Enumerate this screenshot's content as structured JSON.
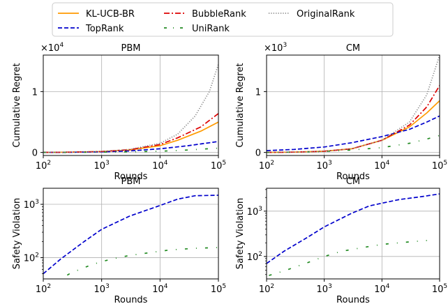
{
  "legend": {
    "placement": "top-center",
    "entries": [
      {
        "label": "KL-UCB-BR",
        "color": "#ff9a00",
        "style": "solid"
      },
      {
        "label": "TopRank",
        "color": "#0000cc",
        "style": "dashed"
      },
      {
        "label": "BubbleRank",
        "color": "#dd0000",
        "style": "dashdot"
      },
      {
        "label": "UniRank",
        "color": "#228b22",
        "style": "sparse-dashdot"
      },
      {
        "label": "OriginalRank",
        "color": "#888888",
        "style": "dotted"
      }
    ]
  },
  "chart_data": [
    {
      "type": "line",
      "title": "PBM",
      "ylabel": "Cumulative Regret",
      "xlabel": "Rounds",
      "xscale": "log",
      "yscale": "linear",
      "xlim": [
        100,
        100000
      ],
      "ylim": [
        -0.05,
        1.6
      ],
      "multiplier": "×10",
      "multiplier_exp": "4",
      "grid": true,
      "xticks": [
        {
          "base": "10",
          "exp": "2"
        },
        {
          "base": "10",
          "exp": "3"
        },
        {
          "base": "10",
          "exp": "4"
        },
        {
          "base": "10",
          "exp": "5"
        }
      ],
      "yticks": [
        "0",
        "1"
      ],
      "series": [
        {
          "name": "KL-UCB-BR",
          "x": [
            100,
            300,
            1000,
            3000,
            10000,
            20000,
            50000,
            100000
          ],
          "y": [
            0.0,
            0.005,
            0.015,
            0.04,
            0.11,
            0.2,
            0.35,
            0.5
          ]
        },
        {
          "name": "TopRank",
          "x": [
            100,
            300,
            1000,
            3000,
            10000,
            30000,
            100000
          ],
          "y": [
            0.0,
            0.003,
            0.01,
            0.025,
            0.06,
            0.11,
            0.18
          ]
        },
        {
          "name": "BubbleRank",
          "x": [
            100,
            300,
            1000,
            3000,
            10000,
            20000,
            50000,
            100000
          ],
          "y": [
            0.0,
            0.005,
            0.015,
            0.045,
            0.13,
            0.24,
            0.42,
            0.64
          ]
        },
        {
          "name": "UniRank",
          "x": [
            100,
            300,
            1000,
            3000,
            10000,
            30000,
            100000
          ],
          "y": [
            0.0,
            0.002,
            0.005,
            0.01,
            0.02,
            0.04,
            0.07
          ]
        },
        {
          "name": "OriginalRank",
          "x": [
            100,
            300,
            1000,
            3000,
            10000,
            20000,
            40000,
            70000,
            100000
          ],
          "y": [
            0.0,
            0.005,
            0.015,
            0.05,
            0.15,
            0.3,
            0.6,
            1.0,
            1.45
          ]
        }
      ]
    },
    {
      "type": "line",
      "title": "CM",
      "ylabel": "Cumulative Regret",
      "xlabel": "Rounds",
      "xscale": "log",
      "yscale": "linear",
      "xlim": [
        100,
        100000
      ],
      "ylim": [
        -0.05,
        1.6
      ],
      "multiplier": "×10",
      "multiplier_exp": "3",
      "grid": true,
      "xticks": [
        {
          "base": "10",
          "exp": "2"
        },
        {
          "base": "10",
          "exp": "3"
        },
        {
          "base": "10",
          "exp": "4"
        },
        {
          "base": "10",
          "exp": "5"
        }
      ],
      "yticks": [
        "0",
        "1"
      ],
      "series": [
        {
          "name": "KL-UCB-BR",
          "x": [
            100,
            300,
            1000,
            3000,
            10000,
            30000,
            60000,
            100000
          ],
          "y": [
            0.0,
            0.005,
            0.02,
            0.06,
            0.2,
            0.42,
            0.65,
            0.85
          ]
        },
        {
          "name": "TopRank",
          "x": [
            100,
            300,
            1000,
            3000,
            10000,
            30000,
            60000,
            100000
          ],
          "y": [
            0.03,
            0.05,
            0.09,
            0.16,
            0.26,
            0.38,
            0.5,
            0.6
          ]
        },
        {
          "name": "BubbleRank",
          "x": [
            100,
            300,
            1000,
            3000,
            10000,
            30000,
            60000,
            100000
          ],
          "y": [
            0.0,
            0.005,
            0.02,
            0.06,
            0.2,
            0.45,
            0.75,
            1.1
          ]
        },
        {
          "name": "UniRank",
          "x": [
            100,
            300,
            1000,
            3000,
            10000,
            30000,
            60000,
            100000
          ],
          "y": [
            0.0,
            0.005,
            0.015,
            0.04,
            0.08,
            0.15,
            0.22,
            0.28
          ]
        },
        {
          "name": "OriginalRank",
          "x": [
            100,
            300,
            1000,
            3000,
            10000,
            30000,
            60000,
            100000
          ],
          "y": [
            0.0,
            0.005,
            0.02,
            0.06,
            0.2,
            0.5,
            0.95,
            1.6
          ]
        }
      ]
    },
    {
      "type": "line",
      "title": "PBM",
      "ylabel": "Safety Violation",
      "xlabel": "Rounds",
      "xscale": "log",
      "yscale": "log",
      "xlim": [
        100,
        100000
      ],
      "ylim": [
        40,
        2000
      ],
      "grid": true,
      "xticks": [
        {
          "base": "10",
          "exp": "2"
        },
        {
          "base": "10",
          "exp": "3"
        },
        {
          "base": "10",
          "exp": "4"
        },
        {
          "base": "10",
          "exp": "5"
        }
      ],
      "yticks": [
        {
          "base": "10",
          "exp": "2"
        },
        {
          "base": "10",
          "exp": "3"
        }
      ],
      "series": [
        {
          "name": "TopRank",
          "x": [
            100,
            200,
            500,
            1000,
            3000,
            10000,
            20000,
            40000,
            100000
          ],
          "y": [
            50,
            95,
            200,
            340,
            600,
            950,
            1250,
            1450,
            1480
          ]
        },
        {
          "name": "UniRank",
          "x": [
            130,
            300,
            700,
            1500,
            3000,
            7000,
            15000,
            40000,
            100000
          ],
          "y": [
            30,
            52,
            75,
            95,
            110,
            125,
            140,
            150,
            155
          ]
        }
      ]
    },
    {
      "type": "line",
      "title": "CM",
      "ylabel": "Safety Violation",
      "xlabel": "Rounds",
      "xscale": "log",
      "yscale": "log",
      "xlim": [
        100,
        100000
      ],
      "ylim": [
        32,
        3200
      ],
      "grid": true,
      "xticks": [
        {
          "base": "10",
          "exp": "2"
        },
        {
          "base": "10",
          "exp": "3"
        },
        {
          "base": "10",
          "exp": "4"
        },
        {
          "base": "10",
          "exp": "5"
        }
      ],
      "yticks": [
        {
          "base": "10",
          "exp": "2"
        },
        {
          "base": "10",
          "exp": "3"
        }
      ],
      "series": [
        {
          "name": "TopRank",
          "x": [
            100,
            200,
            500,
            1000,
            3000,
            6000,
            10000,
            20000,
            50000,
            100000
          ],
          "y": [
            70,
            130,
            260,
            450,
            900,
            1300,
            1500,
            1800,
            2100,
            2400
          ]
        },
        {
          "name": "UniRank",
          "x": [
            110,
            200,
            500,
            1000,
            2000,
            5000,
            10000,
            30000,
            60000
          ],
          "y": [
            38,
            48,
            72,
            100,
            130,
            160,
            185,
            210,
            225
          ]
        }
      ]
    }
  ]
}
